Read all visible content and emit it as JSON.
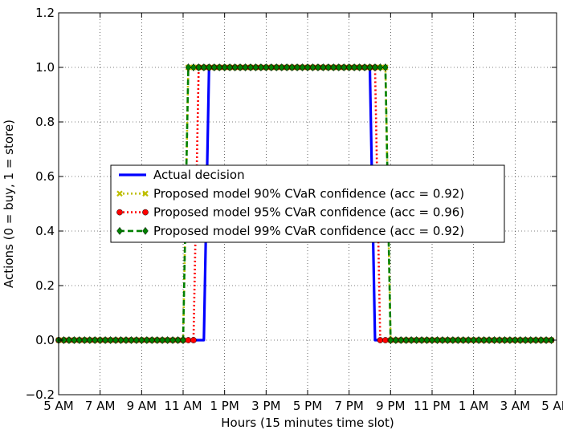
{
  "chart_data": {
    "type": "line",
    "xlabel": "Hours (15 minutes time slot)",
    "ylabel": "Actions (0 = buy, 1 = store)",
    "xlim": [
      0,
      96
    ],
    "ylim": [
      -0.2,
      1.2
    ],
    "x_ticks": [
      {
        "value": 0,
        "label": "5 AM"
      },
      {
        "value": 8,
        "label": "7 AM"
      },
      {
        "value": 16,
        "label": "9 AM"
      },
      {
        "value": 24,
        "label": "11 AM"
      },
      {
        "value": 32,
        "label": "1 PM"
      },
      {
        "value": 40,
        "label": "3 PM"
      },
      {
        "value": 48,
        "label": "5 PM"
      },
      {
        "value": 56,
        "label": "7 PM"
      },
      {
        "value": 64,
        "label": "9 PM"
      },
      {
        "value": 72,
        "label": "11 PM"
      },
      {
        "value": 80,
        "label": "1 AM"
      },
      {
        "value": 88,
        "label": "3 AM"
      },
      {
        "value": 96,
        "label": "5 AM"
      }
    ],
    "y_ticks": [
      {
        "value": -0.2,
        "label": "−0.2"
      },
      {
        "value": 0.0,
        "label": "0.0"
      },
      {
        "value": 0.2,
        "label": "0.2"
      },
      {
        "value": 0.4,
        "label": "0.4"
      },
      {
        "value": 0.6,
        "label": "0.6"
      },
      {
        "value": 0.8,
        "label": "0.8"
      },
      {
        "value": 1.0,
        "label": "1.0"
      },
      {
        "value": 1.2,
        "label": "1.2"
      }
    ],
    "grid": true,
    "legend_position": "center-left",
    "series": [
      {
        "name": "Actual decision",
        "color": "#0000ff",
        "line_style": "solid",
        "marker": "none",
        "steps": [
          [
            0,
            0
          ],
          [
            28,
            0
          ],
          [
            29,
            1
          ],
          [
            60,
            1
          ],
          [
            61,
            0
          ],
          [
            95,
            0
          ]
        ]
      },
      {
        "name": "Proposed model 90% CVaR confidence (acc = 0.92)",
        "color": "#bfbf00",
        "line_style": "dotted",
        "marker": "x",
        "steps": [
          [
            0,
            0
          ],
          [
            24,
            0
          ],
          [
            25,
            1
          ],
          [
            63,
            1
          ],
          [
            64,
            0
          ],
          [
            95,
            0
          ]
        ]
      },
      {
        "name": "Proposed model 95% CVaR confidence (acc = 0.96)",
        "color": "#ff0000",
        "line_style": "dotted",
        "marker": "circle",
        "steps": [
          [
            0,
            0
          ],
          [
            26,
            0
          ],
          [
            27,
            1
          ],
          [
            61,
            1
          ],
          [
            62,
            0
          ],
          [
            95,
            0
          ]
        ]
      },
      {
        "name": "Proposed model 99% CVaR confidence (acc = 0.92)",
        "color": "#008000",
        "line_style": "dashed",
        "marker": "diamond",
        "steps": [
          [
            0,
            0
          ],
          [
            24,
            0
          ],
          [
            25,
            1
          ],
          [
            63,
            1
          ],
          [
            64,
            0
          ],
          [
            95,
            0
          ]
        ]
      }
    ]
  }
}
